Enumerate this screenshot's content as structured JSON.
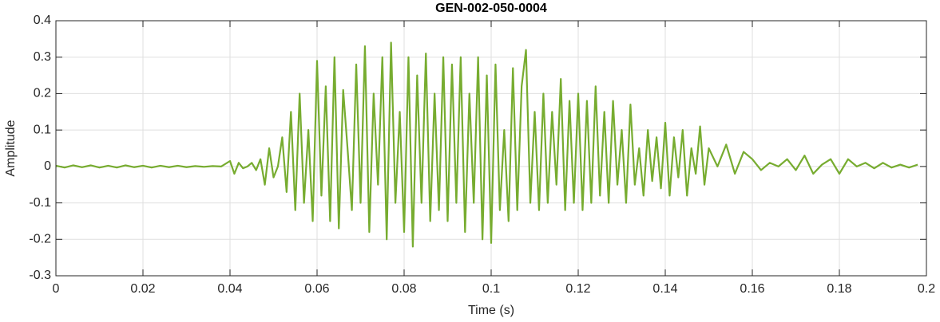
{
  "chart_data": {
    "type": "line",
    "title": "GEN-002-050-0004",
    "xlabel": "Time (s)",
    "ylabel": "Amplitude",
    "xlim": [
      0,
      0.2
    ],
    "ylim": [
      -0.3,
      0.4
    ],
    "xticks": [
      0,
      0.02,
      0.04,
      0.06,
      0.08,
      0.1,
      0.12,
      0.14,
      0.16,
      0.18,
      0.2
    ],
    "yticks": [
      -0.3,
      -0.2,
      -0.1,
      0,
      0.1,
      0.2,
      0.3,
      0.4
    ],
    "grid": true,
    "x": [
      0,
      0.002,
      0.004,
      0.006,
      0.008,
      0.01,
      0.012,
      0.014,
      0.016,
      0.018,
      0.02,
      0.022,
      0.024,
      0.026,
      0.028,
      0.03,
      0.032,
      0.034,
      0.036,
      0.038,
      0.04,
      0.041,
      0.042,
      0.043,
      0.044,
      0.045,
      0.046,
      0.047,
      0.048,
      0.049,
      0.05,
      0.051,
      0.052,
      0.053,
      0.054,
      0.055,
      0.056,
      0.057,
      0.058,
      0.059,
      0.06,
      0.061,
      0.062,
      0.063,
      0.064,
      0.065,
      0.066,
      0.067,
      0.068,
      0.069,
      0.07,
      0.071,
      0.072,
      0.073,
      0.074,
      0.075,
      0.076,
      0.077,
      0.078,
      0.079,
      0.08,
      0.081,
      0.082,
      0.083,
      0.084,
      0.085,
      0.086,
      0.087,
      0.088,
      0.089,
      0.09,
      0.091,
      0.092,
      0.093,
      0.094,
      0.095,
      0.096,
      0.097,
      0.098,
      0.099,
      0.1,
      0.101,
      0.102,
      0.103,
      0.104,
      0.105,
      0.106,
      0.107,
      0.108,
      0.109,
      0.11,
      0.111,
      0.112,
      0.113,
      0.114,
      0.115,
      0.116,
      0.117,
      0.118,
      0.119,
      0.12,
      0.121,
      0.122,
      0.123,
      0.124,
      0.125,
      0.126,
      0.127,
      0.128,
      0.129,
      0.13,
      0.131,
      0.132,
      0.133,
      0.134,
      0.135,
      0.136,
      0.137,
      0.138,
      0.139,
      0.14,
      0.141,
      0.142,
      0.143,
      0.144,
      0.145,
      0.146,
      0.147,
      0.148,
      0.149,
      0.15,
      0.152,
      0.154,
      0.156,
      0.158,
      0.16,
      0.162,
      0.164,
      0.166,
      0.168,
      0.17,
      0.172,
      0.174,
      0.176,
      0.178,
      0.18,
      0.182,
      0.184,
      0.186,
      0.188,
      0.19,
      0.192,
      0.194,
      0.196,
      0.198
    ],
    "series": [
      {
        "color": "#77ac30",
        "values": [
          0.002,
          -0.003,
          0.003,
          -0.002,
          0.003,
          -0.003,
          0.002,
          -0.003,
          0.003,
          -0.002,
          0.002,
          -0.003,
          0.002,
          -0.002,
          0.002,
          -0.002,
          0.001,
          -0.001,
          0.001,
          0,
          0.015,
          -0.02,
          0.01,
          -0.005,
          0,
          0.01,
          -0.01,
          0.02,
          -0.05,
          0.05,
          -0.03,
          0,
          0.08,
          -0.07,
          0.15,
          -0.12,
          0.2,
          -0.1,
          0.1,
          -0.15,
          0.29,
          -0.08,
          0.22,
          -0.15,
          0.3,
          -0.17,
          0.21,
          0.05,
          -0.12,
          0.28,
          -0.1,
          0.33,
          -0.18,
          0.2,
          -0.05,
          0.3,
          -0.2,
          0.34,
          -0.1,
          0.15,
          -0.18,
          0.3,
          -0.22,
          0.25,
          -0.1,
          0.31,
          -0.15,
          0.2,
          -0.12,
          0.3,
          -0.15,
          0.28,
          -0.1,
          0.3,
          -0.18,
          0.2,
          -0.1,
          0.3,
          -0.2,
          0.25,
          -0.21,
          0.28,
          -0.12,
          0.1,
          -0.15,
          0.27,
          -0.12,
          0.22,
          0.32,
          -0.1,
          0.15,
          -0.12,
          0.2,
          -0.1,
          0.15,
          -0.05,
          0.24,
          -0.12,
          0.18,
          -0.1,
          0.2,
          -0.12,
          0.18,
          -0.1,
          0.22,
          -0.08,
          0.15,
          -0.1,
          0.18,
          -0.05,
          0.1,
          -0.1,
          0.17,
          -0.05,
          0.05,
          -0.08,
          0.1,
          -0.04,
          0.08,
          -0.06,
          0.12,
          -0.08,
          0.08,
          -0.03,
          0.1,
          -0.08,
          0.05,
          -0.02,
          0.11,
          -0.05,
          0.05,
          0,
          0.06,
          -0.02,
          0.04,
          0.02,
          -0.01,
          0.01,
          0,
          0.02,
          -0.01,
          0.03,
          -0.02,
          0.005,
          0.02,
          -0.02,
          0.02,
          0,
          0.01,
          -0.005,
          0.01,
          -0.003,
          0.005,
          -0.003,
          0.005
        ]
      }
    ]
  }
}
